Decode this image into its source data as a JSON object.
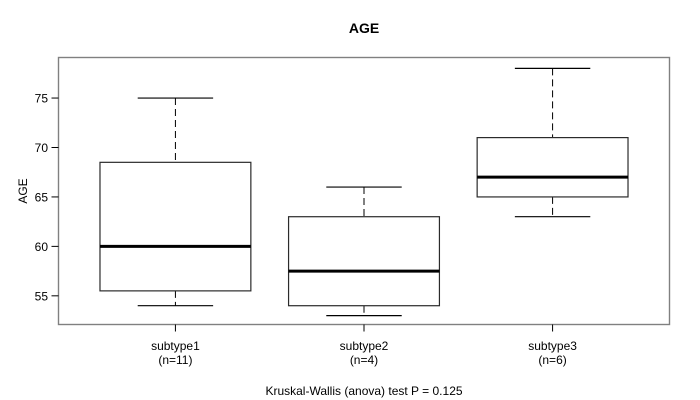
{
  "chart_data": {
    "type": "boxplot",
    "title": "AGE",
    "ylabel": "AGE",
    "xlabel": "",
    "annotation": "Kruskal-Wallis (anova) test P = 0.125",
    "yticks": [
      55,
      60,
      65,
      70,
      75
    ],
    "ylim": [
      52.1,
      79.1
    ],
    "grid": false,
    "legend": "none",
    "categories": [
      "subtype1",
      "subtype2",
      "subtype3"
    ],
    "boxes": [
      {
        "name": "subtype1",
        "label_line1": "subtype1",
        "label_line2": "(n=11)",
        "n": 11,
        "whisker_low": 54,
        "q1": 55.5,
        "median": 60,
        "q3": 68.5,
        "whisker_high": 75
      },
      {
        "name": "subtype2",
        "label_line1": "subtype2",
        "label_line2": "(n=4)",
        "n": 4,
        "whisker_low": 53,
        "q1": 54,
        "median": 57.5,
        "q3": 63,
        "whisker_high": 66
      },
      {
        "name": "subtype3",
        "label_line1": "subtype3",
        "label_line2": "(n=6)",
        "n": 6,
        "whisker_low": 63,
        "q1": 65,
        "median": 67,
        "q3": 71,
        "whisker_high": 78
      }
    ],
    "colors": {
      "background": "#ffffff",
      "plot_border": "#808080",
      "box_stroke": "#000000",
      "median_line": "#000000",
      "text": "#000000"
    }
  }
}
